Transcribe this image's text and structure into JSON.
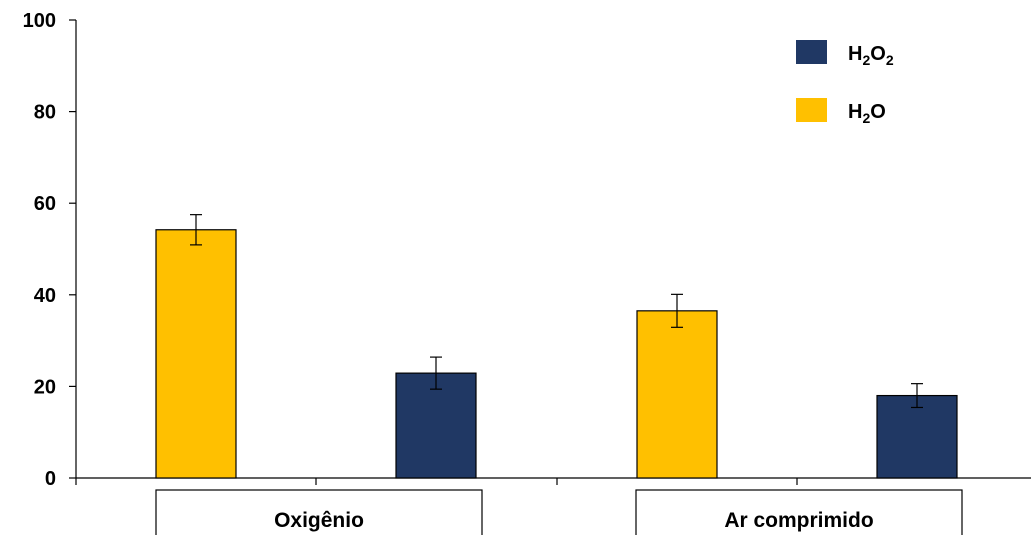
{
  "chart_data": {
    "type": "bar",
    "categories": [
      "Oxigênio",
      "Ar comprimido"
    ],
    "series": [
      {
        "name": "H₂O",
        "legend_base": "H",
        "legend_sub": "2",
        "legend_tail": "O",
        "color": "#FFC000",
        "values": [
          54.2,
          36.5
        ],
        "errors": [
          3.3,
          3.6
        ]
      },
      {
        "name": "H₂O₂",
        "legend_base": "H",
        "legend_sub": "2",
        "legend_tail": "O",
        "legend_sub2": "2",
        "color": "#203864",
        "values": [
          22.9,
          18.0
        ],
        "errors": [
          3.5,
          2.6
        ]
      }
    ],
    "ylim": [
      0,
      100
    ],
    "yticks": [
      0,
      20,
      40,
      60,
      80,
      100
    ],
    "legend_position": "top-right",
    "grid": false
  }
}
